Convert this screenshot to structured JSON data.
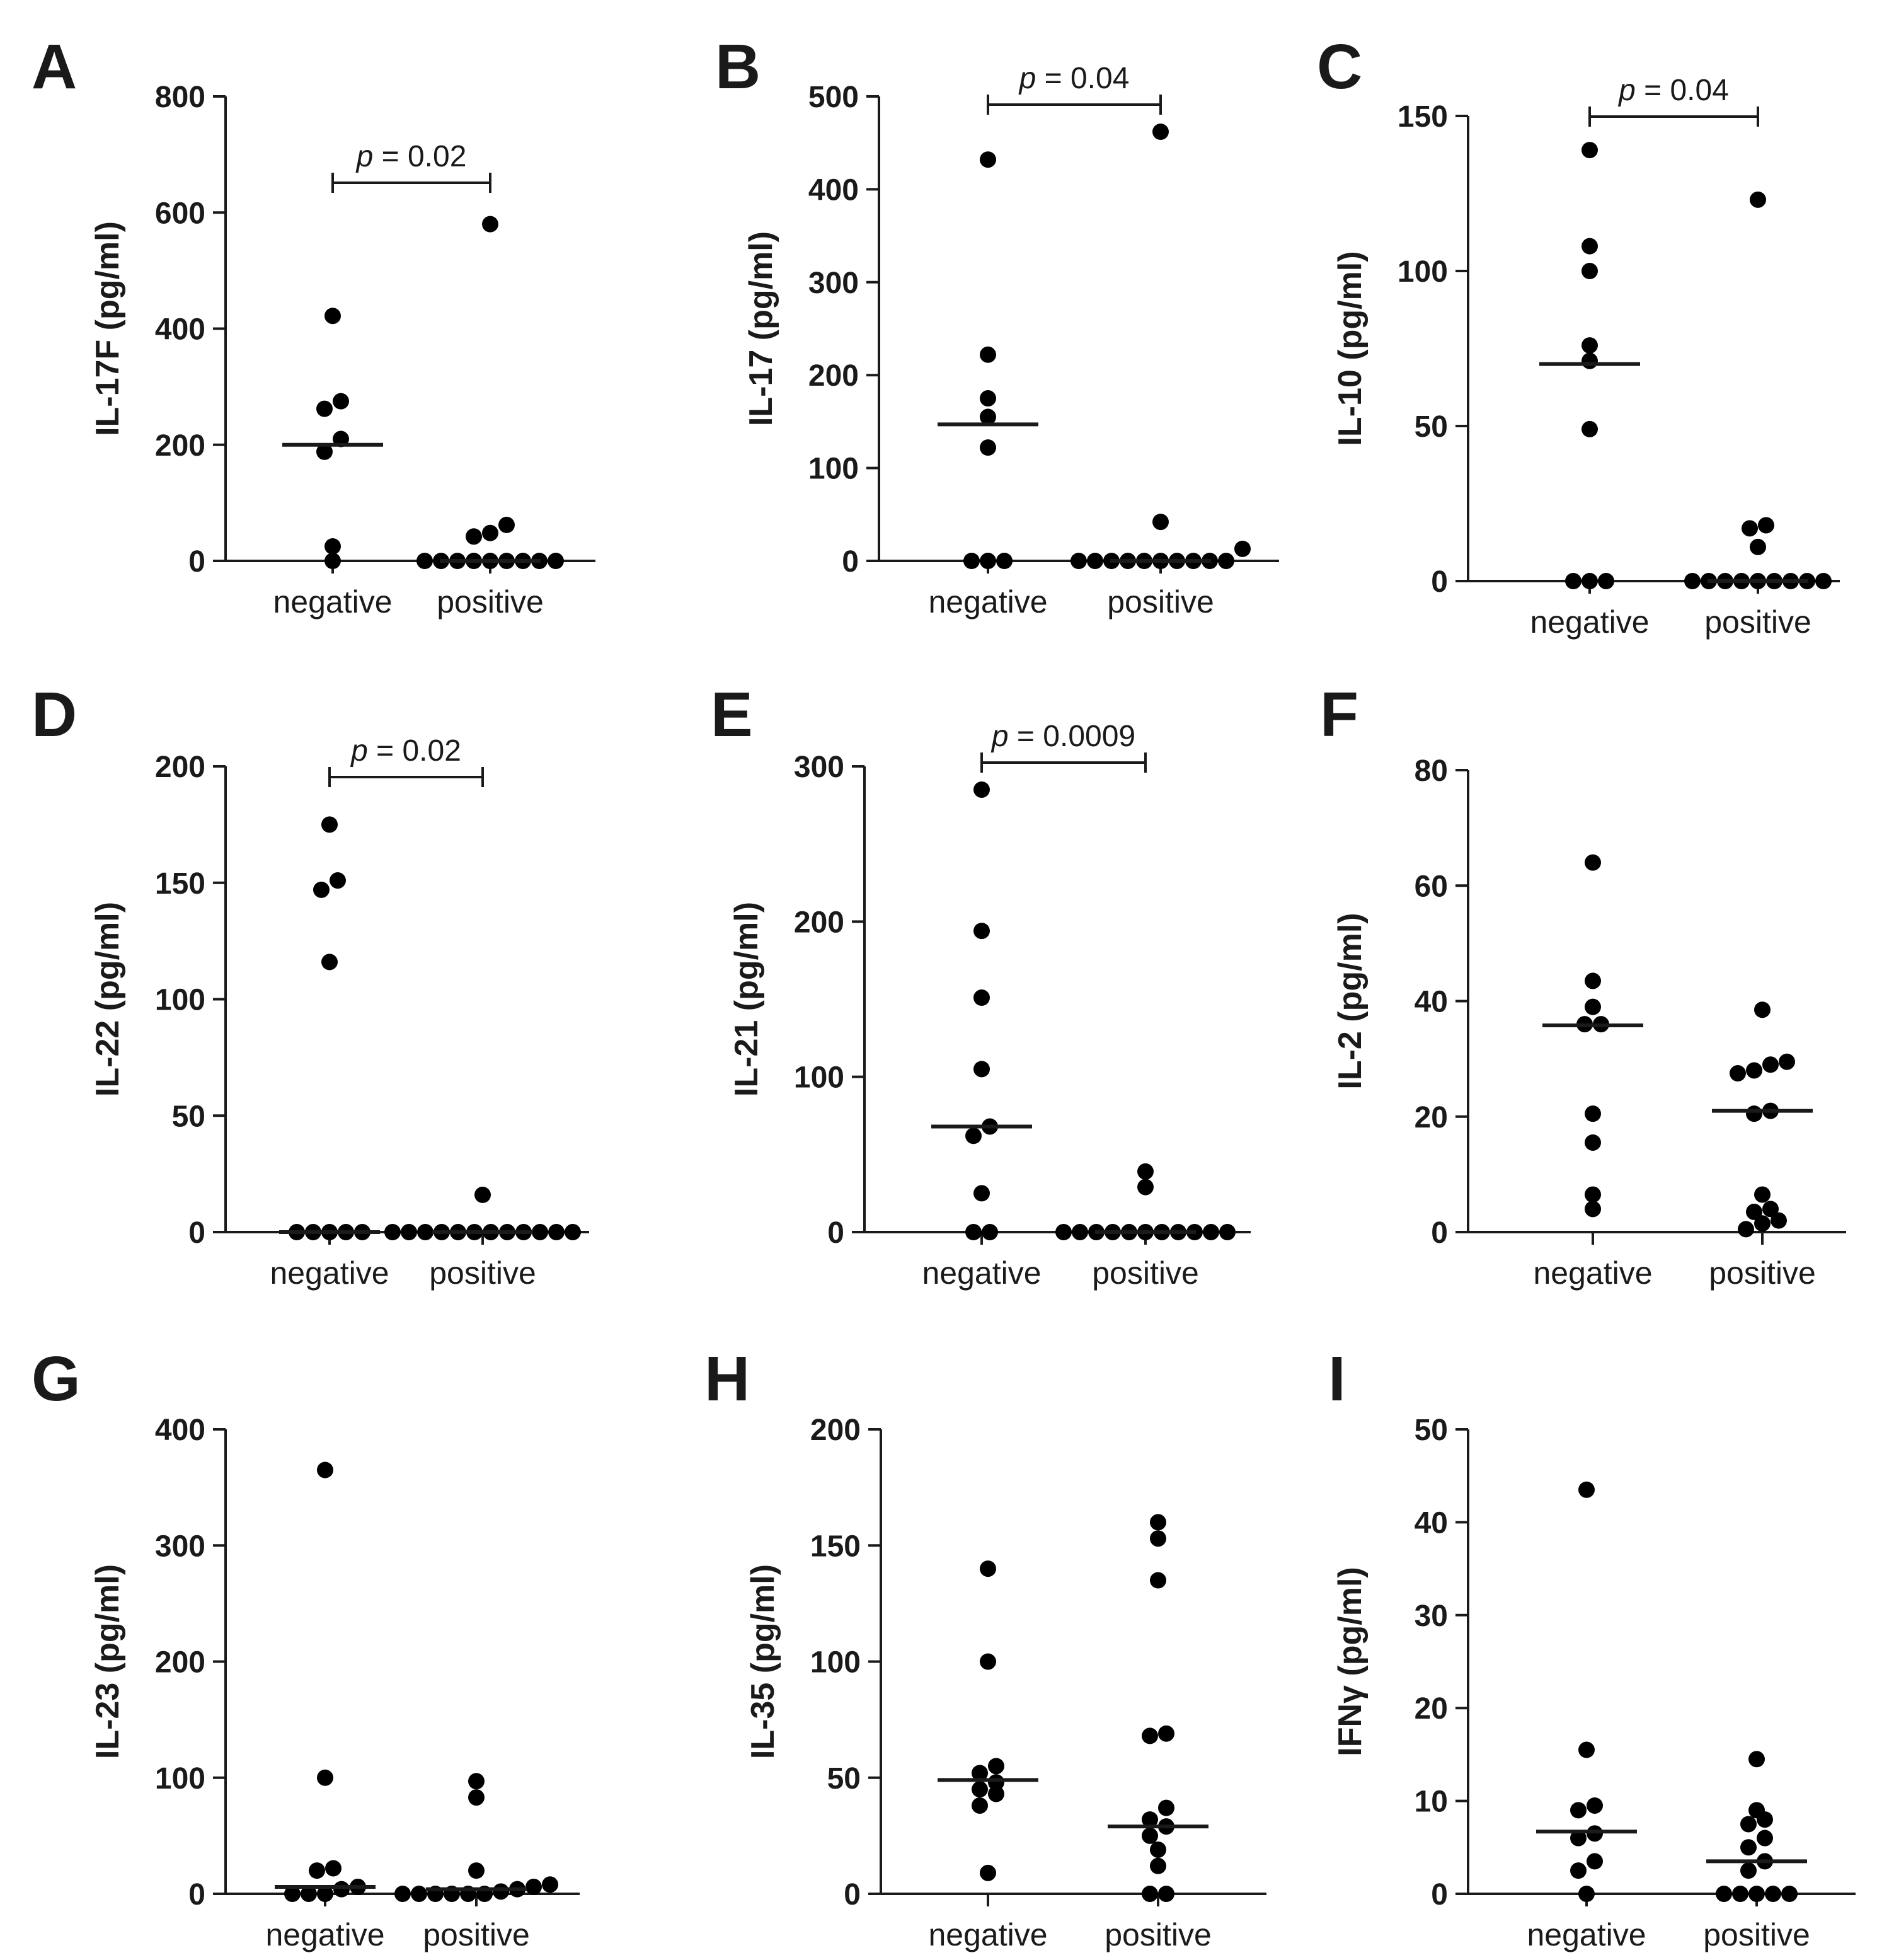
{
  "chart_data": [
    {
      "panel": "A",
      "type": "scatter",
      "ylabel": "IL-17F (pg/ml)",
      "categories": [
        "negative",
        "positive"
      ],
      "ylim": [
        0,
        800
      ],
      "yticks": [
        0,
        200,
        400,
        600,
        800
      ],
      "series": [
        {
          "name": "negative",
          "values": [
            422,
            275,
            262,
            210,
            188,
            25,
            0
          ],
          "median": 200
        },
        {
          "name": "positive",
          "values": [
            580,
            62,
            48,
            42,
            0,
            0,
            0,
            0,
            0,
            0,
            0,
            0,
            0
          ],
          "median": 0
        }
      ],
      "pvalue": {
        "label": "p",
        "text": " = 0.02"
      }
    },
    {
      "panel": "B",
      "type": "scatter",
      "ylabel": "IL-17 (pg/ml)",
      "categories": [
        "negative",
        "positive"
      ],
      "ylim": [
        0,
        500
      ],
      "yticks": [
        0,
        100,
        200,
        300,
        400,
        500
      ],
      "series": [
        {
          "name": "negative",
          "values": [
            432,
            222,
            175,
            155,
            122,
            0,
            0,
            0
          ],
          "median": 147
        },
        {
          "name": "positive",
          "values": [
            462,
            42,
            13,
            0,
            0,
            0,
            0,
            0,
            0,
            0,
            0,
            0,
            0
          ],
          "median": 0
        }
      ],
      "pvalue": {
        "label": "p",
        "text": " = 0.04"
      }
    },
    {
      "panel": "C",
      "type": "scatter",
      "ylabel": "IL-10 (pg/ml)",
      "categories": [
        "negative",
        "positive"
      ],
      "ylim": [
        0,
        150
      ],
      "yticks": [
        0,
        50,
        100,
        150
      ],
      "series": [
        {
          "name": "negative",
          "values": [
            139,
            108,
            100,
            76,
            71,
            49,
            0,
            0,
            0
          ],
          "median": 70
        },
        {
          "name": "positive",
          "values": [
            123,
            18,
            17,
            11,
            0,
            0,
            0,
            0,
            0,
            0,
            0,
            0,
            0
          ],
          "median": 0
        }
      ],
      "pvalue": {
        "label": "p",
        "text": " = 0.04"
      }
    },
    {
      "panel": "D",
      "type": "scatter",
      "ylabel": "IL-22 (pg/ml)",
      "categories": [
        "negative",
        "positive"
      ],
      "ylim": [
        0,
        200
      ],
      "yticks": [
        0,
        50,
        100,
        150,
        200
      ],
      "series": [
        {
          "name": "negative",
          "values": [
            175,
            151,
            147,
            116,
            0,
            0,
            0,
            0,
            0
          ],
          "median": 0
        },
        {
          "name": "positive",
          "values": [
            16,
            0,
            0,
            0,
            0,
            0,
            0,
            0,
            0,
            0,
            0,
            0,
            0
          ],
          "median": 0
        }
      ],
      "pvalue": {
        "label": "p",
        "text": " = 0.02"
      }
    },
    {
      "panel": "E",
      "type": "scatter",
      "ylabel": "IL-21 (pg/ml)",
      "categories": [
        "negative",
        "positive"
      ],
      "ylim": [
        0,
        300
      ],
      "yticks": [
        0,
        100,
        200,
        300
      ],
      "series": [
        {
          "name": "negative",
          "values": [
            285,
            194,
            151,
            105,
            68,
            62,
            25,
            0,
            0
          ],
          "median": 68
        },
        {
          "name": "positive",
          "values": [
            39,
            29,
            0,
            0,
            0,
            0,
            0,
            0,
            0,
            0,
            0,
            0,
            0
          ],
          "median": 0
        }
      ],
      "pvalue": {
        "label": "p",
        "text": " = 0.0009"
      }
    },
    {
      "panel": "F",
      "type": "scatter",
      "ylabel": "IL-2 (pg/ml)",
      "categories": [
        "negative",
        "positive"
      ],
      "ylim": [
        0,
        80
      ],
      "yticks": [
        0,
        20,
        40,
        60,
        80
      ],
      "series": [
        {
          "name": "negative",
          "values": [
            64,
            43.5,
            39,
            36,
            36,
            20.5,
            15.5,
            6.5,
            4
          ],
          "median": 35.8
        },
        {
          "name": "positive",
          "values": [
            38.5,
            29.5,
            29,
            28,
            27.5,
            21,
            20.5,
            6.5,
            4,
            3.5,
            2,
            1.5,
            0.5
          ],
          "median": 21
        }
      ],
      "pvalue": null
    },
    {
      "panel": "G",
      "type": "scatter",
      "ylabel": "IL-23 (pg/ml)",
      "categories": [
        "negative",
        "positive"
      ],
      "ylim": [
        0,
        400
      ],
      "yticks": [
        0,
        100,
        200,
        300,
        400
      ],
      "series": [
        {
          "name": "negative",
          "values": [
            365,
            100,
            22,
            20,
            6,
            4,
            0,
            0,
            0
          ],
          "median": 6
        },
        {
          "name": "positive",
          "values": [
            97,
            83,
            20,
            8,
            6,
            4,
            2,
            0,
            0,
            0,
            0,
            0,
            0
          ],
          "median": 4
        }
      ],
      "pvalue": null
    },
    {
      "panel": "H",
      "type": "scatter",
      "ylabel": "IL-35 (pg/ml)",
      "categories": [
        "negative",
        "positive"
      ],
      "ylim": [
        0,
        200
      ],
      "yticks": [
        0,
        50,
        100,
        150,
        200
      ],
      "series": [
        {
          "name": "negative",
          "values": [
            140,
            100,
            55,
            52,
            48,
            45,
            43,
            38,
            9
          ],
          "median": 49
        },
        {
          "name": "positive",
          "values": [
            160,
            153,
            135,
            69,
            68,
            37,
            32,
            29,
            25,
            19,
            12,
            0,
            0
          ],
          "median": 29
        }
      ],
      "pvalue": null
    },
    {
      "panel": "I",
      "type": "scatter",
      "ylabel": "IFNγ (pg/ml)",
      "categories": [
        "negative",
        "positive"
      ],
      "ylim": [
        0,
        50
      ],
      "yticks": [
        0,
        10,
        20,
        30,
        40,
        50
      ],
      "series": [
        {
          "name": "negative",
          "values": [
            43.5,
            15.5,
            9.5,
            9,
            6.5,
            6,
            3.5,
            2.5,
            0
          ],
          "median": 6.7
        },
        {
          "name": "positive",
          "values": [
            14.5,
            9,
            8,
            7.5,
            6,
            5,
            3.5,
            2.5,
            0,
            0,
            0,
            0,
            0
          ],
          "median": 3.5
        }
      ],
      "pvalue": null
    }
  ]
}
